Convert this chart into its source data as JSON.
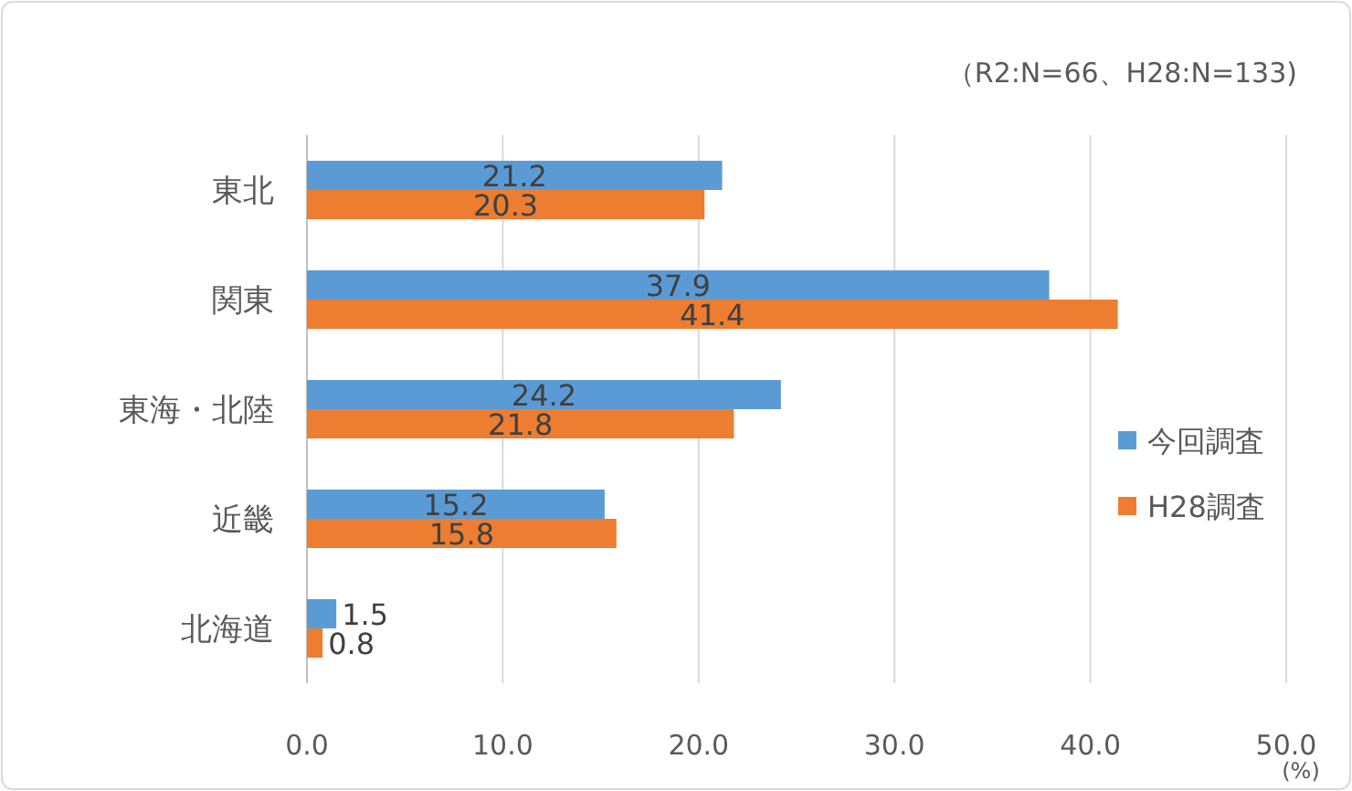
{
  "chart_data": {
    "type": "bar",
    "orientation": "horizontal",
    "subtitle": "（R2:N=66、H28:N=133)",
    "xlabel": "(%)",
    "categories": [
      "東北",
      "関東",
      "東海・北陸",
      "近畿",
      "北海道"
    ],
    "series": [
      {
        "name": "今回調査",
        "color": "#5b9bd5",
        "values": [
          21.2,
          37.9,
          24.2,
          15.2,
          1.5
        ]
      },
      {
        "name": "H28調査",
        "color": "#ed7d31",
        "values": [
          20.3,
          41.4,
          21.8,
          15.8,
          0.8
        ]
      }
    ],
    "xlim": [
      0,
      50
    ],
    "xticks": [
      {
        "value": 0,
        "label": "0.0"
      },
      {
        "value": 10,
        "label": "10.0"
      },
      {
        "value": 20,
        "label": "20.0"
      },
      {
        "value": 30,
        "label": "30.0"
      },
      {
        "value": 40,
        "label": "40.0"
      },
      {
        "value": 50,
        "label": "50.0"
      }
    ],
    "grid": "x",
    "legend": "right",
    "data_labels": true
  }
}
